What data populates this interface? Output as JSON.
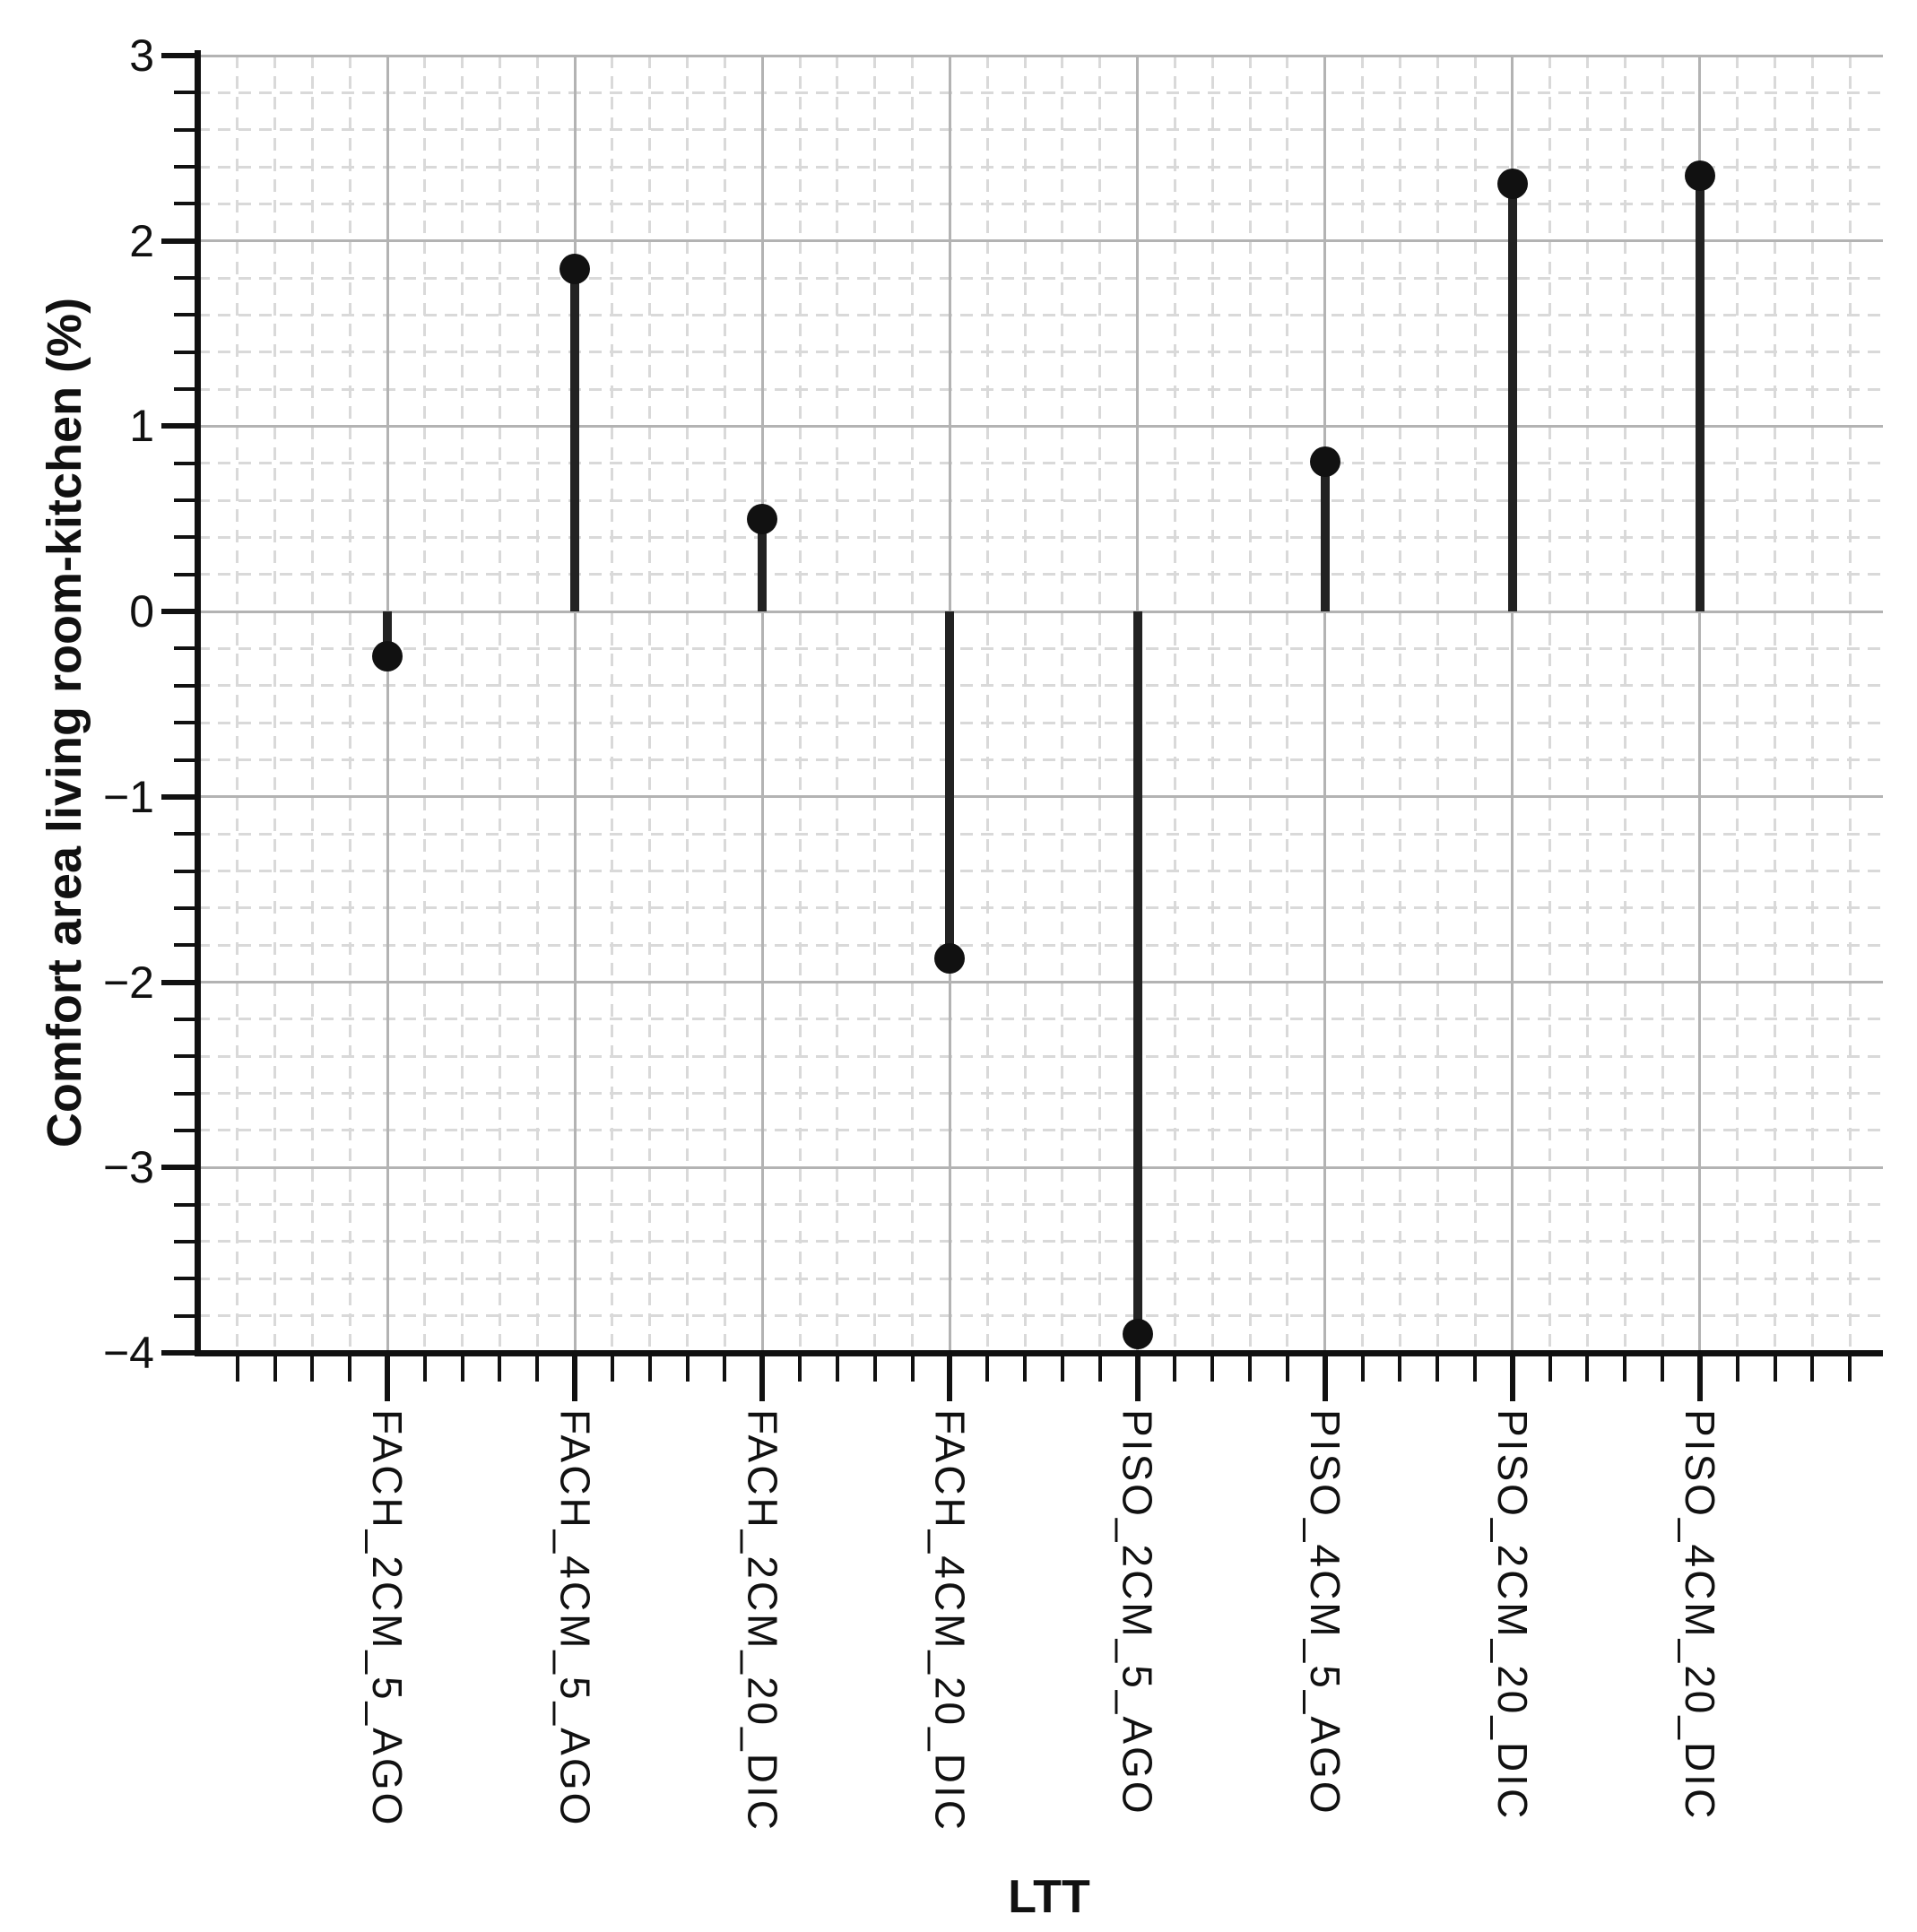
{
  "figure": {
    "background": "#ffffff"
  },
  "chart_data": {
    "type": "scatter",
    "variant": "lollipop-stem",
    "title": "",
    "xlabel": "LTT",
    "ylabel": "Comfort area living room-kitchen (%)",
    "categories": [
      "FACH_2CM_5_AGO",
      "FACH_4CM_5_AGO",
      "FACH_2CM_20_DIC",
      "FACH_4CM_20_DIC",
      "PISO_2CM_5_AGO",
      "PISO_4CM_5_AGO",
      "PISO_2CM_20_DIC",
      "PISO_4CM_20_DIC"
    ],
    "values": [
      -0.24,
      1.85,
      0.5,
      -1.87,
      -3.9,
      0.81,
      2.31,
      2.35
    ],
    "baseline": 0,
    "ylim": [
      -4,
      3
    ],
    "yticks": [
      3,
      2,
      1,
      0,
      -1,
      -2,
      -3,
      -4
    ],
    "ytick_labels": [
      "3",
      "2",
      "1",
      "0",
      "−1",
      "−2",
      "−3",
      "−4"
    ],
    "y_minor_step": 0.2,
    "x_minor_divisions": 5,
    "grid": {
      "major": true,
      "minor": true,
      "minor_style": "dashed"
    },
    "legend": "none",
    "colors": {
      "marker": "#111111",
      "stem": "#222222",
      "axis": "#111111",
      "text": "#111111",
      "major_grid": "#b3b3b3",
      "minor_grid": "#d9d9d9"
    }
  }
}
